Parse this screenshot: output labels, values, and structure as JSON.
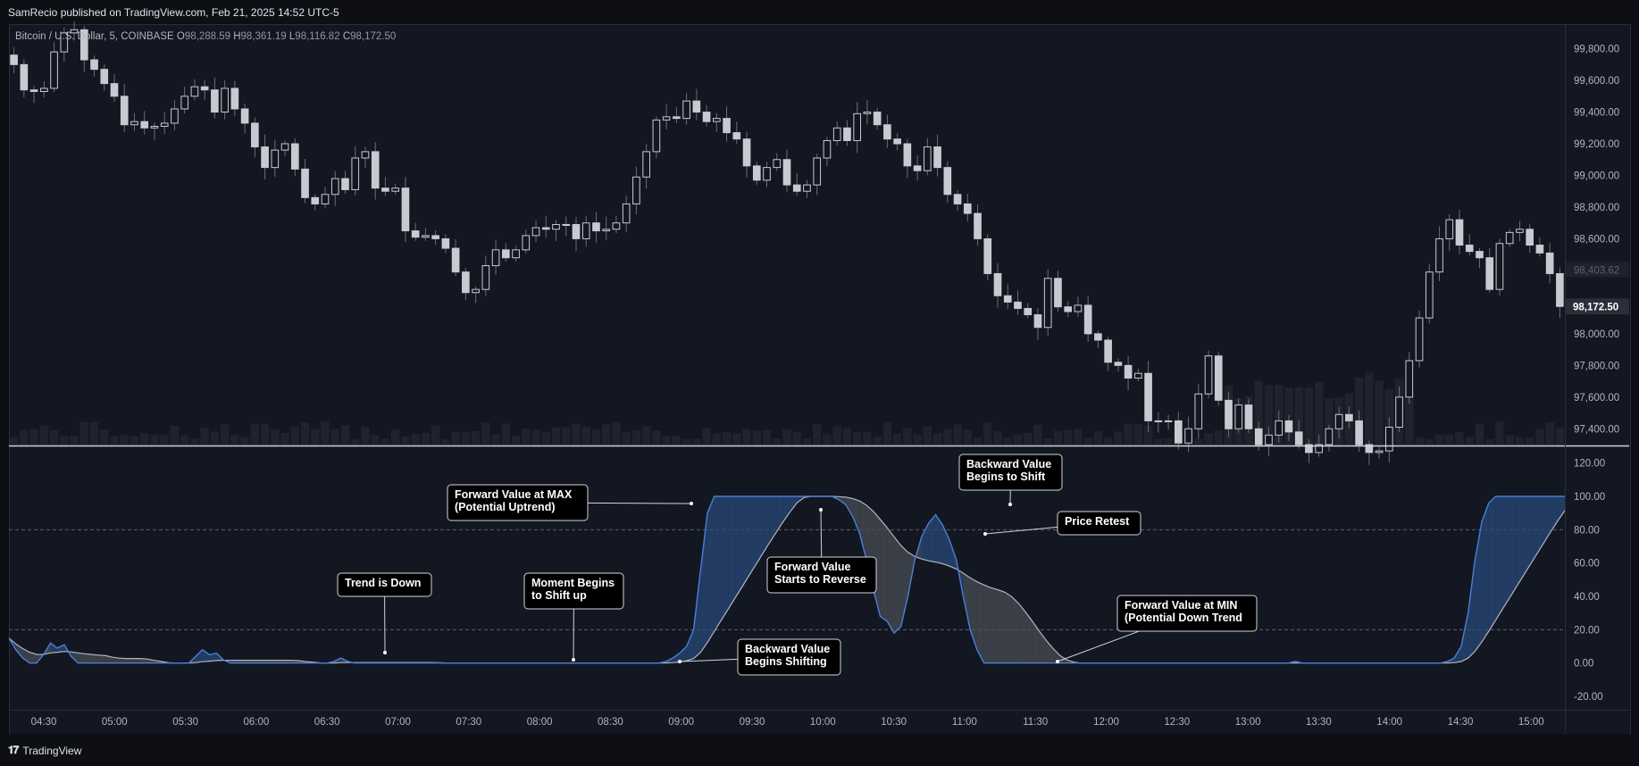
{
  "header": {
    "published": "SamRecio published on TradingView.com, Feb 21, 2025 14:52 UTC-5"
  },
  "legend": {
    "symbol": "Bitcoin / U.S. Dollar, 5, COINBASE",
    "o_label": "O",
    "o_value": "98,288.59",
    "h_label": "H",
    "h_value": "98,361.19",
    "l_label": "L",
    "l_value": "98,116.82",
    "c_label": "C",
    "c_value": "98,172.50"
  },
  "footer": {
    "brand": "TradingView"
  },
  "colors": {
    "background": "#131722",
    "candle": "#c9cad1",
    "oscillator_forward": "#4a7fd6",
    "oscillator_backward": "#b2b5be",
    "fill_bullish": "#2a4a7a",
    "fill_bearish": "#4a4d55",
    "price_label_bg": "#2a2e39"
  },
  "chart_data": [
    {
      "type": "candlestick",
      "title": "Bitcoin / U.S. Dollar, 5, COINBASE",
      "ylim": [
        97300,
        99950
      ],
      "yticks": [
        "99,800.00",
        "99,600.00",
        "99,400.00",
        "99,200.00",
        "99,000.00",
        "98,800.00",
        "98,600.00",
        "98,400.00",
        "98,200.00",
        "98,000.00",
        "97,800.00",
        "97,600.00",
        "97,400.00"
      ],
      "last_price_label": "98,172.50",
      "secondary_price_label": "98,403.62",
      "x_ticks": [
        "04:30",
        "05:00",
        "05:30",
        "06:00",
        "06:30",
        "07:00",
        "07:30",
        "08:00",
        "08:30",
        "09:00",
        "09:30",
        "10:00",
        "10:30",
        "11:00",
        "11:30",
        "12:00",
        "12:30",
        "13:00",
        "13:30",
        "14:00",
        "14:30",
        "15:00"
      ],
      "closes": [
        99700,
        99540,
        99530,
        99550,
        99780,
        99900,
        99920,
        99730,
        99670,
        99580,
        99500,
        99320,
        99340,
        99300,
        99310,
        99330,
        99420,
        99500,
        99560,
        99540,
        99400,
        99550,
        99420,
        99330,
        99180,
        99050,
        99160,
        99200,
        99040,
        98860,
        98820,
        98880,
        98980,
        98910,
        99110,
        99150,
        98920,
        98900,
        98920,
        98650,
        98610,
        98620,
        98600,
        98540,
        98390,
        98260,
        98280,
        98430,
        98530,
        98480,
        98530,
        98620,
        98670,
        98660,
        98690,
        98690,
        98600,
        98700,
        98650,
        98660,
        98700,
        98820,
        98990,
        99150,
        99350,
        99370,
        99360,
        99470,
        99400,
        99340,
        99360,
        99270,
        99230,
        99060,
        98970,
        99050,
        99100,
        98940,
        98900,
        98940,
        99110,
        99220,
        99300,
        99220,
        99390,
        99400,
        99320,
        99230,
        99200,
        99060,
        99030,
        99180,
        99050,
        98880,
        98820,
        98760,
        98600,
        98380,
        98240,
        98200,
        98160,
        98120,
        98040,
        98350,
        98170,
        98140,
        98180,
        98000,
        97960,
        97820,
        97800,
        97720,
        97750,
        97450,
        97450,
        97450,
        97310,
        97400,
        97620,
        97860,
        97580,
        97400,
        97550,
        97400,
        97300,
        97360,
        97450,
        97380,
        97300,
        97250,
        97300,
        97400,
        97490,
        97450,
        97300,
        97250,
        97260,
        97410,
        97600,
        97830,
        98100,
        98390,
        98600,
        98720,
        98560,
        98520,
        98480,
        98280,
        98570,
        98640,
        98660,
        98560,
        98510,
        98380,
        98172.5
      ],
      "volume_note": "bars along bottom of price pane"
    },
    {
      "type": "line",
      "title": "",
      "ylim": [
        -28,
        130
      ],
      "yticks": [
        "120.00",
        "100.00",
        "80.00",
        "60.00",
        "40.00",
        "20.00",
        "0.00",
        "-20.00"
      ],
      "dashed_levels": [
        80,
        20
      ],
      "series": [
        {
          "values": [
            15,
            8,
            3,
            0,
            0,
            5,
            12,
            9,
            11,
            4,
            0,
            0,
            0,
            0,
            0,
            0,
            0,
            0,
            0,
            0,
            0,
            0,
            0,
            0,
            0,
            0,
            0,
            4,
            8,
            5,
            6,
            2,
            0,
            0,
            0,
            0,
            0,
            0,
            0,
            0,
            0,
            0,
            0,
            0,
            0,
            0,
            0,
            1,
            3,
            1,
            0,
            0,
            0,
            0,
            0,
            0,
            0,
            0,
            0,
            0,
            0,
            0,
            0,
            0,
            0,
            0,
            0,
            0,
            0,
            0,
            0,
            0,
            0,
            0,
            0,
            0,
            0,
            0,
            0,
            0,
            0,
            0,
            0,
            0,
            0,
            0,
            0,
            0,
            0,
            0,
            0,
            0,
            0,
            0,
            0,
            1,
            3,
            6,
            10,
            20,
            55,
            90,
            100,
            100,
            100,
            100,
            100,
            100,
            100,
            100,
            100,
            100,
            100,
            100,
            100,
            100,
            100,
            100,
            100,
            100,
            98,
            95,
            88,
            78,
            62,
            44,
            28,
            25,
            18,
            22,
            40,
            62,
            76,
            84,
            89,
            83,
            74,
            62,
            40,
            20,
            8,
            0,
            0,
            0,
            0,
            0,
            0,
            0,
            0,
            0,
            0,
            0,
            0,
            0,
            0,
            0,
            0,
            0,
            0,
            0,
            0,
            0,
            0,
            0,
            0,
            0,
            0,
            0,
            0,
            0,
            0,
            0,
            0,
            0,
            0,
            0,
            0,
            0,
            0,
            0,
            0,
            0,
            0,
            0,
            0,
            0,
            1,
            0,
            0,
            0,
            0,
            0,
            0,
            0,
            0,
            0,
            0,
            0,
            0,
            0,
            0,
            0,
            0,
            0,
            0,
            0,
            0,
            0,
            1,
            3,
            10,
            30,
            62,
            85,
            96,
            100,
            100,
            100,
            100,
            100,
            100,
            100,
            100,
            100,
            100,
            100
          ]
        },
        {
          "values": []
        }
      ]
    }
  ],
  "annotations": {
    "trend_down": "Trend is Down",
    "moment_line1": "Moment Begins",
    "moment_line2": "to Shift up",
    "fwd_max_line1": "Forward Value at MAX",
    "fwd_max_line2": "(Potential Uptrend)",
    "bwd_begins_line1": "Backward Value",
    "bwd_begins_line2": "Begins Shifting",
    "fwd_rev_line1": "Forward Value",
    "fwd_rev_line2": "Starts to Reverse",
    "bwd_shift_line1": "Backward Value",
    "bwd_shift_line2": "Begins to Shift",
    "price_retest": "Price Retest",
    "fwd_min_line1": "Forward Value at MIN",
    "fwd_min_line2": "(Potential Down Trend"
  }
}
